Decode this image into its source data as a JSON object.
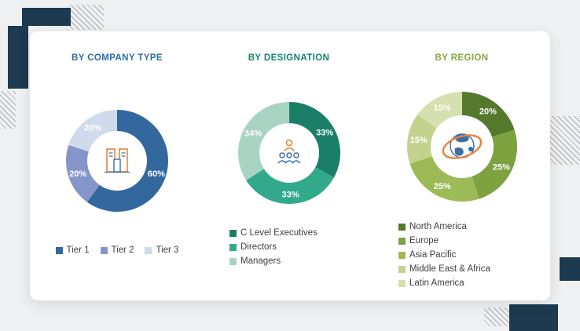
{
  "page": {
    "background_color": "#eef0f2",
    "card_color": "#ffffff",
    "accent_navy": "#1d3a50",
    "hatch_color": "#a6adb4",
    "icon_orange": "#e8833a",
    "icon_blue": "#3a6ea8"
  },
  "chart_data": [
    {
      "type": "pie",
      "donut": true,
      "title": "BY COMPANY TYPE",
      "title_color": "#2e6ca8",
      "categories": [
        "Tier 1",
        "Tier 2",
        "Tier 3"
      ],
      "values": [
        60,
        20,
        20
      ],
      "slice_labels": [
        "60%",
        "20%",
        "20%"
      ],
      "colors": [
        "#33689e",
        "#8496c9",
        "#cfdbeb"
      ],
      "label_color": "#ffffff",
      "start_angle_deg": 0,
      "direction": "clockwise",
      "outer_r": 65,
      "inner_r": 38,
      "legend_position": "bottom-horizontal",
      "center_icon": "buildings-icon"
    },
    {
      "type": "pie",
      "donut": true,
      "title": "BY DESIGNATION",
      "title_color": "#17866b",
      "categories": [
        "C Level Executives",
        "Directors",
        "Managers"
      ],
      "values": [
        33,
        33,
        34
      ],
      "slice_labels": [
        "33%",
        "33%",
        "34%"
      ],
      "colors": [
        "#1b7f68",
        "#33a98c",
        "#a9d4c3"
      ],
      "label_color": "#ffffff",
      "start_angle_deg": 0,
      "direction": "clockwise",
      "outer_r": 65,
      "inner_r": 38,
      "legend_position": "bottom-left-vertical",
      "center_icon": "people-icon"
    },
    {
      "type": "pie",
      "donut": true,
      "title": "BY REGION",
      "title_color": "#85a63f",
      "categories": [
        "North America",
        "Europe",
        "Asia Pacific",
        "Middle East & Africa",
        "Latin America"
      ],
      "values": [
        20,
        25,
        25,
        15,
        15
      ],
      "slice_labels": [
        "20%",
        "25%",
        "25%",
        "15%",
        "15%"
      ],
      "colors": [
        "#55792c",
        "#7da23f",
        "#9cba56",
        "#c3d38e",
        "#d6e0ae"
      ],
      "label_color": "#ffffff",
      "start_angle_deg": 0,
      "direction": "clockwise",
      "outer_r": 70,
      "inner_r": 40,
      "legend_position": "bottom-left-vertical",
      "center_icon": "globe-icon"
    }
  ]
}
